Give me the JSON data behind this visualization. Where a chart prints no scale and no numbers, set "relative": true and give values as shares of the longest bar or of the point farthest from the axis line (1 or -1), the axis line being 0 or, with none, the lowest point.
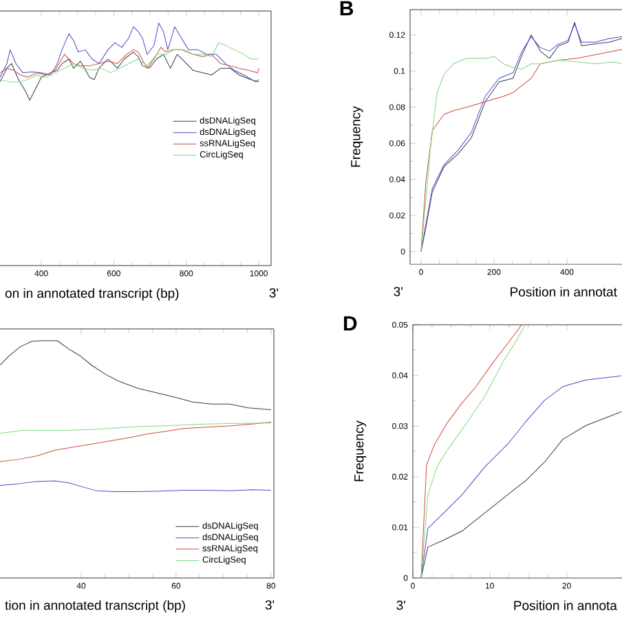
{
  "chart_data": [
    {
      "type": "line",
      "relative": true,
      "tick_labels": "x",
      "xlabel": "on in annotated transcript (bp)",
      "annotations": [
        "3'"
      ],
      "legend": "right",
      "xlim": [
        286,
        1034
      ],
      "xticks": [
        400,
        600,
        800,
        1000
      ],
      "series": [
        {
          "name": "dsDNALigSeq",
          "color": "#3a3a50",
          "x": [
            286,
            305,
            318,
            337,
            356,
            368,
            381,
            400,
            425,
            444,
            457,
            476,
            489,
            508,
            533,
            546,
            559,
            584,
            610,
            629,
            654,
            667,
            679,
            698,
            718,
            737,
            756,
            775,
            794,
            819,
            845,
            870,
            895,
            921,
            946,
            978,
            1000
          ],
          "values": [
            0.758,
            0.814,
            0.833,
            0.767,
            0.72,
            0.682,
            0.72,
            0.777,
            0.795,
            0.805,
            0.833,
            0.852,
            0.814,
            0.843,
            0.777,
            0.767,
            0.814,
            0.852,
            0.814,
            0.852,
            0.881,
            0.862,
            0.824,
            0.814,
            0.852,
            0.871,
            0.814,
            0.871,
            0.843,
            0.805,
            0.795,
            0.786,
            0.814,
            0.814,
            0.786,
            0.767,
            0.758
          ]
        },
        {
          "name": "dsDNALigSeq",
          "color": "#4a4ad0",
          "x": [
            286,
            305,
            314,
            330,
            349,
            375,
            400,
            425,
            444,
            457,
            476,
            489,
            502,
            521,
            540,
            559,
            584,
            603,
            622,
            641,
            654,
            667,
            679,
            692,
            711,
            724,
            737,
            749,
            768,
            787,
            806,
            832,
            857,
            883,
            908,
            933,
            959,
            991,
            1000
          ],
          "values": [
            0.777,
            0.833,
            0.89,
            0.833,
            0.795,
            0.799,
            0.795,
            0.786,
            0.833,
            0.89,
            0.956,
            0.928,
            0.881,
            0.89,
            0.852,
            0.833,
            0.89,
            0.919,
            0.9,
            0.938,
            0.985,
            0.966,
            0.938,
            0.871,
            0.909,
            1,
            0.966,
            0.89,
            0.985,
            0.938,
            0.89,
            0.89,
            0.871,
            0.871,
            0.833,
            0.805,
            0.786,
            0.758,
            0.767
          ]
        },
        {
          "name": "ssRNALigSeq",
          "color": "#d04a3a",
          "x": [
            286,
            305,
            324,
            343,
            362,
            387,
            413,
            438,
            464,
            489,
            508,
            533,
            559,
            584,
            610,
            635,
            654,
            667,
            692,
            711,
            730,
            743,
            762,
            787,
            819,
            845,
            870,
            895,
            921,
            946,
            972,
            997,
            1000
          ],
          "values": [
            0.795,
            0.814,
            0.805,
            0.786,
            0.777,
            0.795,
            0.786,
            0.805,
            0.871,
            0.833,
            0.824,
            0.824,
            0.833,
            0.843,
            0.833,
            0.871,
            0.89,
            0.881,
            0.814,
            0.852,
            0.9,
            0.881,
            0.89,
            0.89,
            0.871,
            0.862,
            0.871,
            0.833,
            0.824,
            0.814,
            0.805,
            0.795,
            0.814
          ]
        },
        {
          "name": "CircLigSeq",
          "color": "#7ed87e",
          "x": [
            286,
            311,
            337,
            362,
            387,
            413,
            438,
            464,
            489,
            514,
            540,
            565,
            591,
            616,
            641,
            667,
            692,
            718,
            743,
            768,
            794,
            819,
            845,
            870,
            889,
            908,
            933,
            959,
            978,
            1000
          ],
          "values": [
            0.767,
            0.758,
            0.758,
            0.767,
            0.786,
            0.777,
            0.795,
            0.814,
            0.833,
            0.814,
            0.805,
            0.814,
            0.795,
            0.814,
            0.833,
            0.852,
            0.824,
            0.871,
            0.871,
            0.89,
            0.89,
            0.871,
            0.871,
            0.862,
            0.919,
            0.909,
            0.89,
            0.871,
            0.852,
            0.852
          ]
        }
      ]
    },
    {
      "type": "line",
      "title": "B",
      "ylabel": "Frequency",
      "xlabel": "Position in annotat",
      "annotations": [
        "3'"
      ],
      "xlim": [
        -30,
        551
      ],
      "ylim": [
        -0.007,
        0.134
      ],
      "xticks": [
        0,
        200,
        400
      ],
      "yticks": [
        0,
        0.02,
        0.04,
        0.06,
        0.08,
        0.1,
        0.12
      ],
      "series": [
        {
          "color": "#3a3a50",
          "x": [
            0,
            13,
            31,
            63,
            101,
            138,
            176,
            214,
            252,
            277,
            302,
            327,
            352,
            377,
            403,
            421,
            440,
            478,
            516,
            551
          ],
          "values": [
            0,
            0.013,
            0.033,
            0.047,
            0.054,
            0.063,
            0.083,
            0.094,
            0.096,
            0.109,
            0.12,
            0.111,
            0.107,
            0.114,
            0.116,
            0.127,
            0.114,
            0.115,
            0.116,
            0.118
          ]
        },
        {
          "color": "#4a4ad0",
          "x": [
            0,
            13,
            31,
            63,
            101,
            138,
            176,
            214,
            252,
            277,
            302,
            327,
            352,
            377,
            403,
            421,
            440,
            478,
            516,
            551
          ],
          "values": [
            0,
            0.015,
            0.035,
            0.048,
            0.056,
            0.066,
            0.086,
            0.096,
            0.099,
            0.111,
            0.119,
            0.113,
            0.111,
            0.115,
            0.117,
            0.126,
            0.116,
            0.116,
            0.118,
            0.119
          ]
        },
        {
          "color": "#d04a3a",
          "x": [
            0,
            13,
            31,
            63,
            88,
            126,
            176,
            226,
            252,
            277,
            302,
            327,
            377,
            428,
            478,
            528,
            551
          ],
          "values": [
            0,
            0.038,
            0.067,
            0.076,
            0.078,
            0.08,
            0.083,
            0.086,
            0.088,
            0.092,
            0.096,
            0.104,
            0.106,
            0.107,
            0.109,
            0.111,
            0.112
          ]
        },
        {
          "color": "#7ed87e",
          "x": [
            0,
            13,
            25,
            44,
            63,
            88,
            126,
            176,
            201,
            226,
            252,
            277,
            302,
            327,
            377,
            428,
            478,
            528,
            551
          ],
          "values": [
            0,
            0.028,
            0.056,
            0.088,
            0.098,
            0.104,
            0.107,
            0.107,
            0.108,
            0.104,
            0.102,
            0.101,
            0.104,
            0.104,
            0.106,
            0.105,
            0.104,
            0.105,
            0.104
          ]
        }
      ]
    },
    {
      "type": "line",
      "relative": true,
      "tick_labels": "x",
      "xlabel": "tion in annotated transcript (bp)",
      "annotations": [
        "3'"
      ],
      "legend": "bottom right",
      "xlim": [
        22.9,
        80.6
      ],
      "xticks": [
        40,
        60,
        80
      ],
      "series": [
        {
          "name": "dsDNALigSeq",
          "color": "#3a3a50",
          "x": [
            22.9,
            24.8,
            27.2,
            29.6,
            32.1,
            35.0,
            37.4,
            39.8,
            42.2,
            45.1,
            48.0,
            51.9,
            55.8,
            59.7,
            63.5,
            67.4,
            71.3,
            75.2,
            80
          ],
          "values": [
            0.897,
            0.936,
            0.975,
            0.998,
            1,
            1,
            0.965,
            0.936,
            0.897,
            0.859,
            0.829,
            0.8,
            0.781,
            0.762,
            0.742,
            0.733,
            0.733,
            0.717,
            0.709
          ]
        },
        {
          "name": "dsDNALigSeq",
          "color": "#4a4ad0",
          "x": [
            22.9,
            26.7,
            30.6,
            34.5,
            37.4,
            40.3,
            43.2,
            47.1,
            51.9,
            56.8,
            61.6,
            66.5,
            71.3,
            76.1,
            80
          ],
          "values": [
            0.39,
            0.397,
            0.407,
            0.409,
            0.401,
            0.384,
            0.368,
            0.364,
            0.364,
            0.366,
            0.37,
            0.37,
            0.368,
            0.372,
            0.37
          ]
        },
        {
          "name": "ssRNALigSeq",
          "color": "#d04a3a",
          "x": [
            22.9,
            26.7,
            30.6,
            34.5,
            38.4,
            42.2,
            46.1,
            50.0,
            53.9,
            57.7,
            61.6,
            66.5,
            71.3,
            76.1,
            80
          ],
          "values": [
            0.49,
            0.5,
            0.514,
            0.539,
            0.552,
            0.564,
            0.578,
            0.591,
            0.607,
            0.618,
            0.63,
            0.636,
            0.641,
            0.649,
            0.657
          ]
        },
        {
          "name": "CircLigSeq",
          "color": "#7ed87e",
          "x": [
            22.9,
            27.7,
            32.5,
            37.4,
            42.2,
            47.1,
            51.9,
            56.8,
            61.6,
            66.5,
            71.3,
            80
          ],
          "values": [
            0.61,
            0.622,
            0.622,
            0.622,
            0.626,
            0.632,
            0.638,
            0.641,
            0.645,
            0.649,
            0.651,
            0.653
          ]
        }
      ]
    },
    {
      "type": "line",
      "title": "D",
      "ylabel": "Frequency",
      "xlabel": "Position in annota",
      "annotations": [
        "3'"
      ],
      "xlim": [
        0,
        27.2
      ],
      "ylim": [
        0,
        0.05
      ],
      "xticks": [
        0,
        10,
        20
      ],
      "yticks": [
        0,
        0.01,
        0.02,
        0.03,
        0.04,
        0.05
      ],
      "series": [
        {
          "color": "#3a3a50",
          "x": [
            1.07,
            1.96,
            4.05,
            6.43,
            9.4,
            12.38,
            14.76,
            17.14,
            19.52,
            22.49,
            27.1
          ],
          "values": [
            0,
            0.0061,
            0.0075,
            0.0093,
            0.0129,
            0.0165,
            0.0193,
            0.0229,
            0.0274,
            0.0301,
            0.0328
          ]
        },
        {
          "color": "#4a4ad0",
          "x": [
            1.07,
            1.96,
            4.05,
            6.43,
            9.4,
            12.38,
            14.76,
            17.14,
            19.52,
            22.49,
            27.1
          ],
          "values": [
            0,
            0.0098,
            0.0129,
            0.0165,
            0.022,
            0.0265,
            0.031,
            0.0351,
            0.0378,
            0.0391,
            0.0399
          ]
        },
        {
          "color": "#d04a3a",
          "x": [
            1.07,
            1.79,
            2.86,
            4.64,
            6.43,
            8.21,
            10.17,
            12.38,
            14.16
          ],
          "values": [
            0,
            0.0224,
            0.0265,
            0.031,
            0.0346,
            0.0378,
            0.042,
            0.0464,
            0.05
          ]
        },
        {
          "color": "#7ed87e",
          "x": [
            1.07,
            1.96,
            3.15,
            4.64,
            7.02,
            9.4,
            11.78,
            13.27,
            14.64
          ],
          "values": [
            0,
            0.0165,
            0.022,
            0.0256,
            0.0306,
            0.036,
            0.0428,
            0.0464,
            0.05
          ]
        }
      ]
    }
  ]
}
